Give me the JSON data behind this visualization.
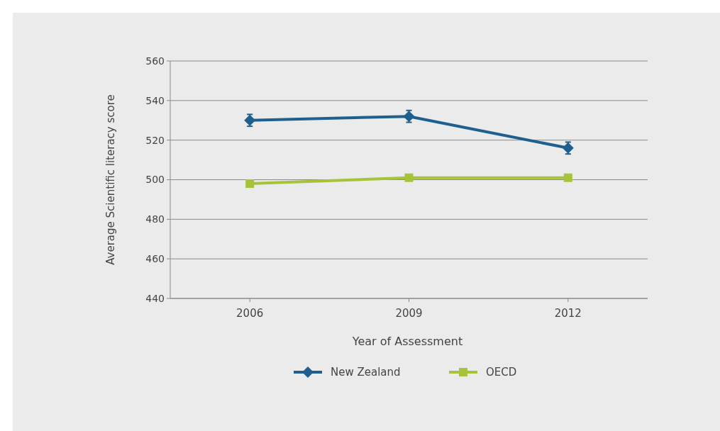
{
  "chart_data": {
    "type": "line",
    "xlabel": "Year of Assessment",
    "ylabel": "Average Scientific literacy score",
    "categories": [
      "2006",
      "2009",
      "2012"
    ],
    "series": [
      {
        "name": "New Zealand",
        "color": "#1f5f8f",
        "values": [
          530,
          532,
          516
        ],
        "errors": [
          3,
          3,
          3
        ],
        "marker": "diamond"
      },
      {
        "name": "OECD",
        "color": "#a6c439",
        "values": [
          498,
          501,
          501
        ],
        "marker": "square"
      }
    ],
    "ylim": [
      440,
      560
    ],
    "yticks": [
      440,
      460,
      480,
      500,
      520,
      540,
      560
    ],
    "grid": "y",
    "legend": "bottom",
    "line_style": "solid"
  }
}
